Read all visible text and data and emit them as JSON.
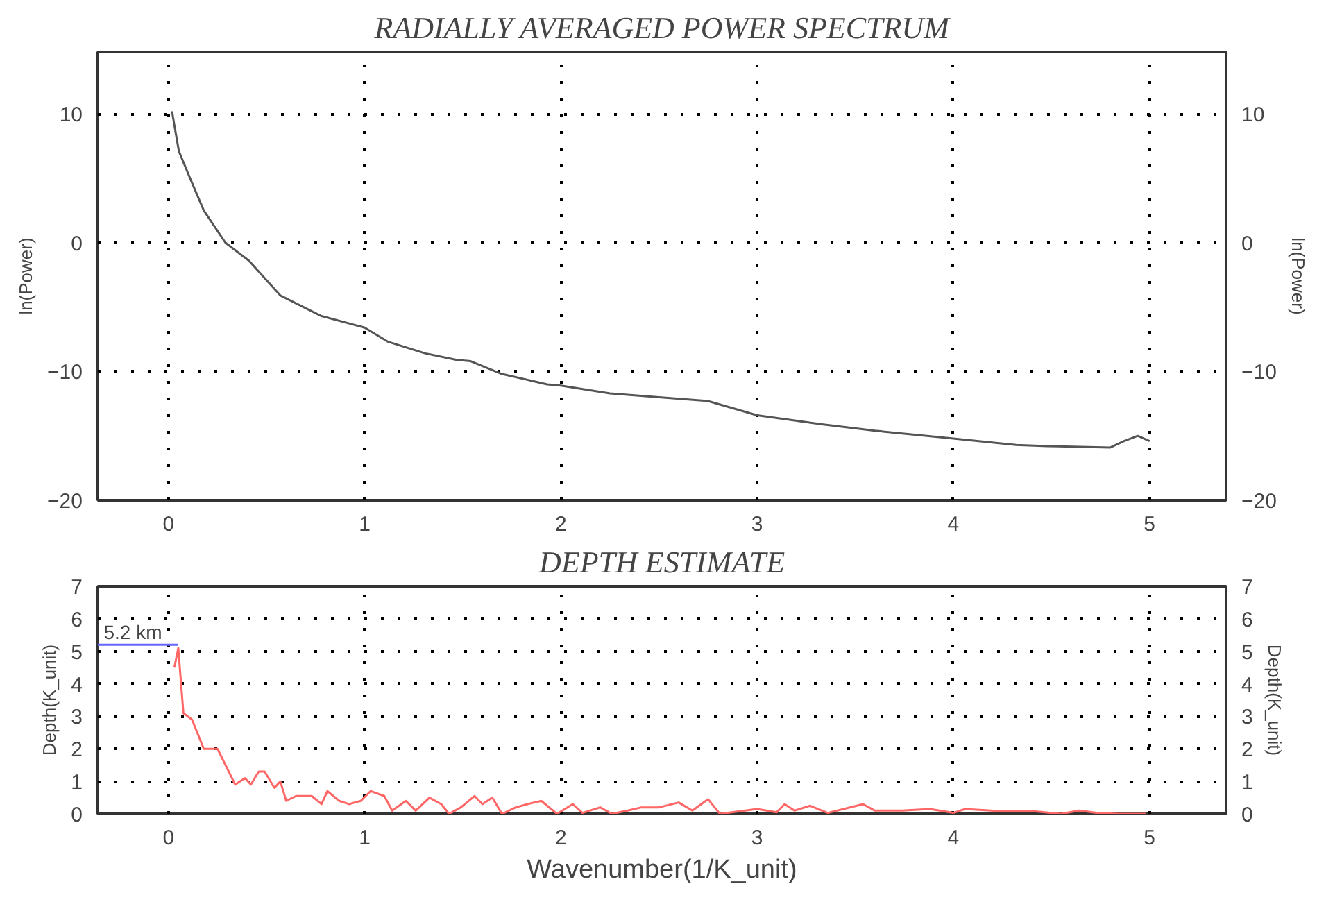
{
  "chart_data": [
    {
      "type": "line",
      "title": "RADIALLY AVERAGED POWER SPECTRUM",
      "ylabel": "ln(Power)",
      "y2label": "ln(Power)",
      "xlim": [
        -0.36,
        5.39
      ],
      "xticks": [
        0,
        1,
        2,
        3,
        4,
        5
      ],
      "ylim": [
        -20,
        14.8
      ],
      "yticks": [
        -20,
        -10,
        0,
        10
      ],
      "y2lim": [
        -20,
        14.8
      ],
      "y2ticks": [
        -20,
        -10,
        0,
        10
      ],
      "grid": true,
      "series": [
        {
          "color": "#555555",
          "x": [
            0.018,
            0.053,
            0.11,
            0.18,
            0.29,
            0.41,
            0.57,
            0.78,
            1.0,
            1.12,
            1.31,
            1.47,
            1.54,
            1.7,
            1.93,
            2.0,
            2.25,
            2.42,
            2.75,
            3.0,
            3.33,
            3.6,
            4.0,
            4.32,
            4.48,
            4.8,
            4.87,
            4.94,
            5.0
          ],
          "values": [
            10.2,
            7.1,
            5.0,
            2.5,
            0,
            -1.4,
            -4.1,
            -5.7,
            -6.6,
            -7.7,
            -8.6,
            -9.1,
            -9.2,
            -10.2,
            -11.0,
            -11.1,
            -11.7,
            -11.9,
            -12.3,
            -13.4,
            -14.1,
            -14.6,
            -15.2,
            -15.7,
            -15.8,
            -15.9,
            -15.4,
            -15.0,
            -15.4
          ]
        }
      ]
    },
    {
      "type": "line",
      "title": "DEPTH ESTIMATE",
      "xlabel": "Wavenumber(1/K_unit)",
      "ylabel": "Depth(K_unit)",
      "y2label": "Depth(K_unit)",
      "xlim": [
        -0.36,
        5.39
      ],
      "xticks": [
        0,
        1,
        2,
        3,
        4,
        5
      ],
      "ylim": [
        0,
        7
      ],
      "yticks": [
        0,
        1,
        2,
        3,
        4,
        5,
        6,
        7
      ],
      "y2lim": [
        0,
        7
      ],
      "y2ticks": [
        0,
        1,
        2,
        3,
        4,
        5,
        6,
        7
      ],
      "grid": true,
      "annotations": [
        {
          "text": "5.2 km",
          "x": -0.33,
          "y": 5.2
        }
      ],
      "series": [
        {
          "color": "#ff6666",
          "x": [
            0.03,
            0.05,
            0.076,
            0.12,
            0.18,
            0.25,
            0.34,
            0.39,
            0.42,
            0.46,
            0.49,
            0.54,
            0.57,
            0.6,
            0.65,
            0.73,
            0.78,
            0.81,
            0.87,
            0.92,
            0.98,
            1.03,
            1.1,
            1.14,
            1.21,
            1.26,
            1.33,
            1.39,
            1.43,
            1.49,
            1.56,
            1.6,
            1.65,
            1.7,
            1.77,
            1.83,
            1.9,
            1.98,
            2.06,
            2.11,
            2.2,
            2.26,
            2.34,
            2.41,
            2.5,
            2.6,
            2.67,
            2.75,
            2.81,
            3.0,
            3.1,
            3.14,
            3.19,
            3.27,
            3.36,
            3.54,
            3.6,
            3.74,
            3.88,
            4.0,
            4.06,
            4.25,
            4.41,
            4.55,
            4.64,
            4.73,
            4.84,
            4.98
          ],
          "values": [
            4.5,
            5.1,
            3.1,
            2.9,
            2.0,
            2.0,
            0.9,
            1.1,
            0.9,
            1.3,
            1.3,
            0.8,
            1.0,
            0.4,
            0.55,
            0.55,
            0.3,
            0.7,
            0.4,
            0.3,
            0.4,
            0.7,
            0.55,
            0.1,
            0.4,
            0.1,
            0.5,
            0.3,
            0,
            0.2,
            0.55,
            0.3,
            0.5,
            0,
            0.2,
            0.3,
            0.4,
            0,
            0.3,
            0.03,
            0.2,
            0,
            0.1,
            0.2,
            0.2,
            0.35,
            0.1,
            0.45,
            0,
            0.15,
            0.05,
            0.3,
            0.1,
            0.25,
            0.03,
            0.3,
            0.1,
            0.1,
            0.15,
            0.03,
            0.15,
            0.08,
            0.08,
            0,
            0.1,
            0.03,
            0,
            0
          ]
        },
        {
          "color": "#6666ff",
          "x": [
            -0.36,
            0.05
          ],
          "values": [
            5.2,
            5.2
          ]
        }
      ]
    }
  ]
}
